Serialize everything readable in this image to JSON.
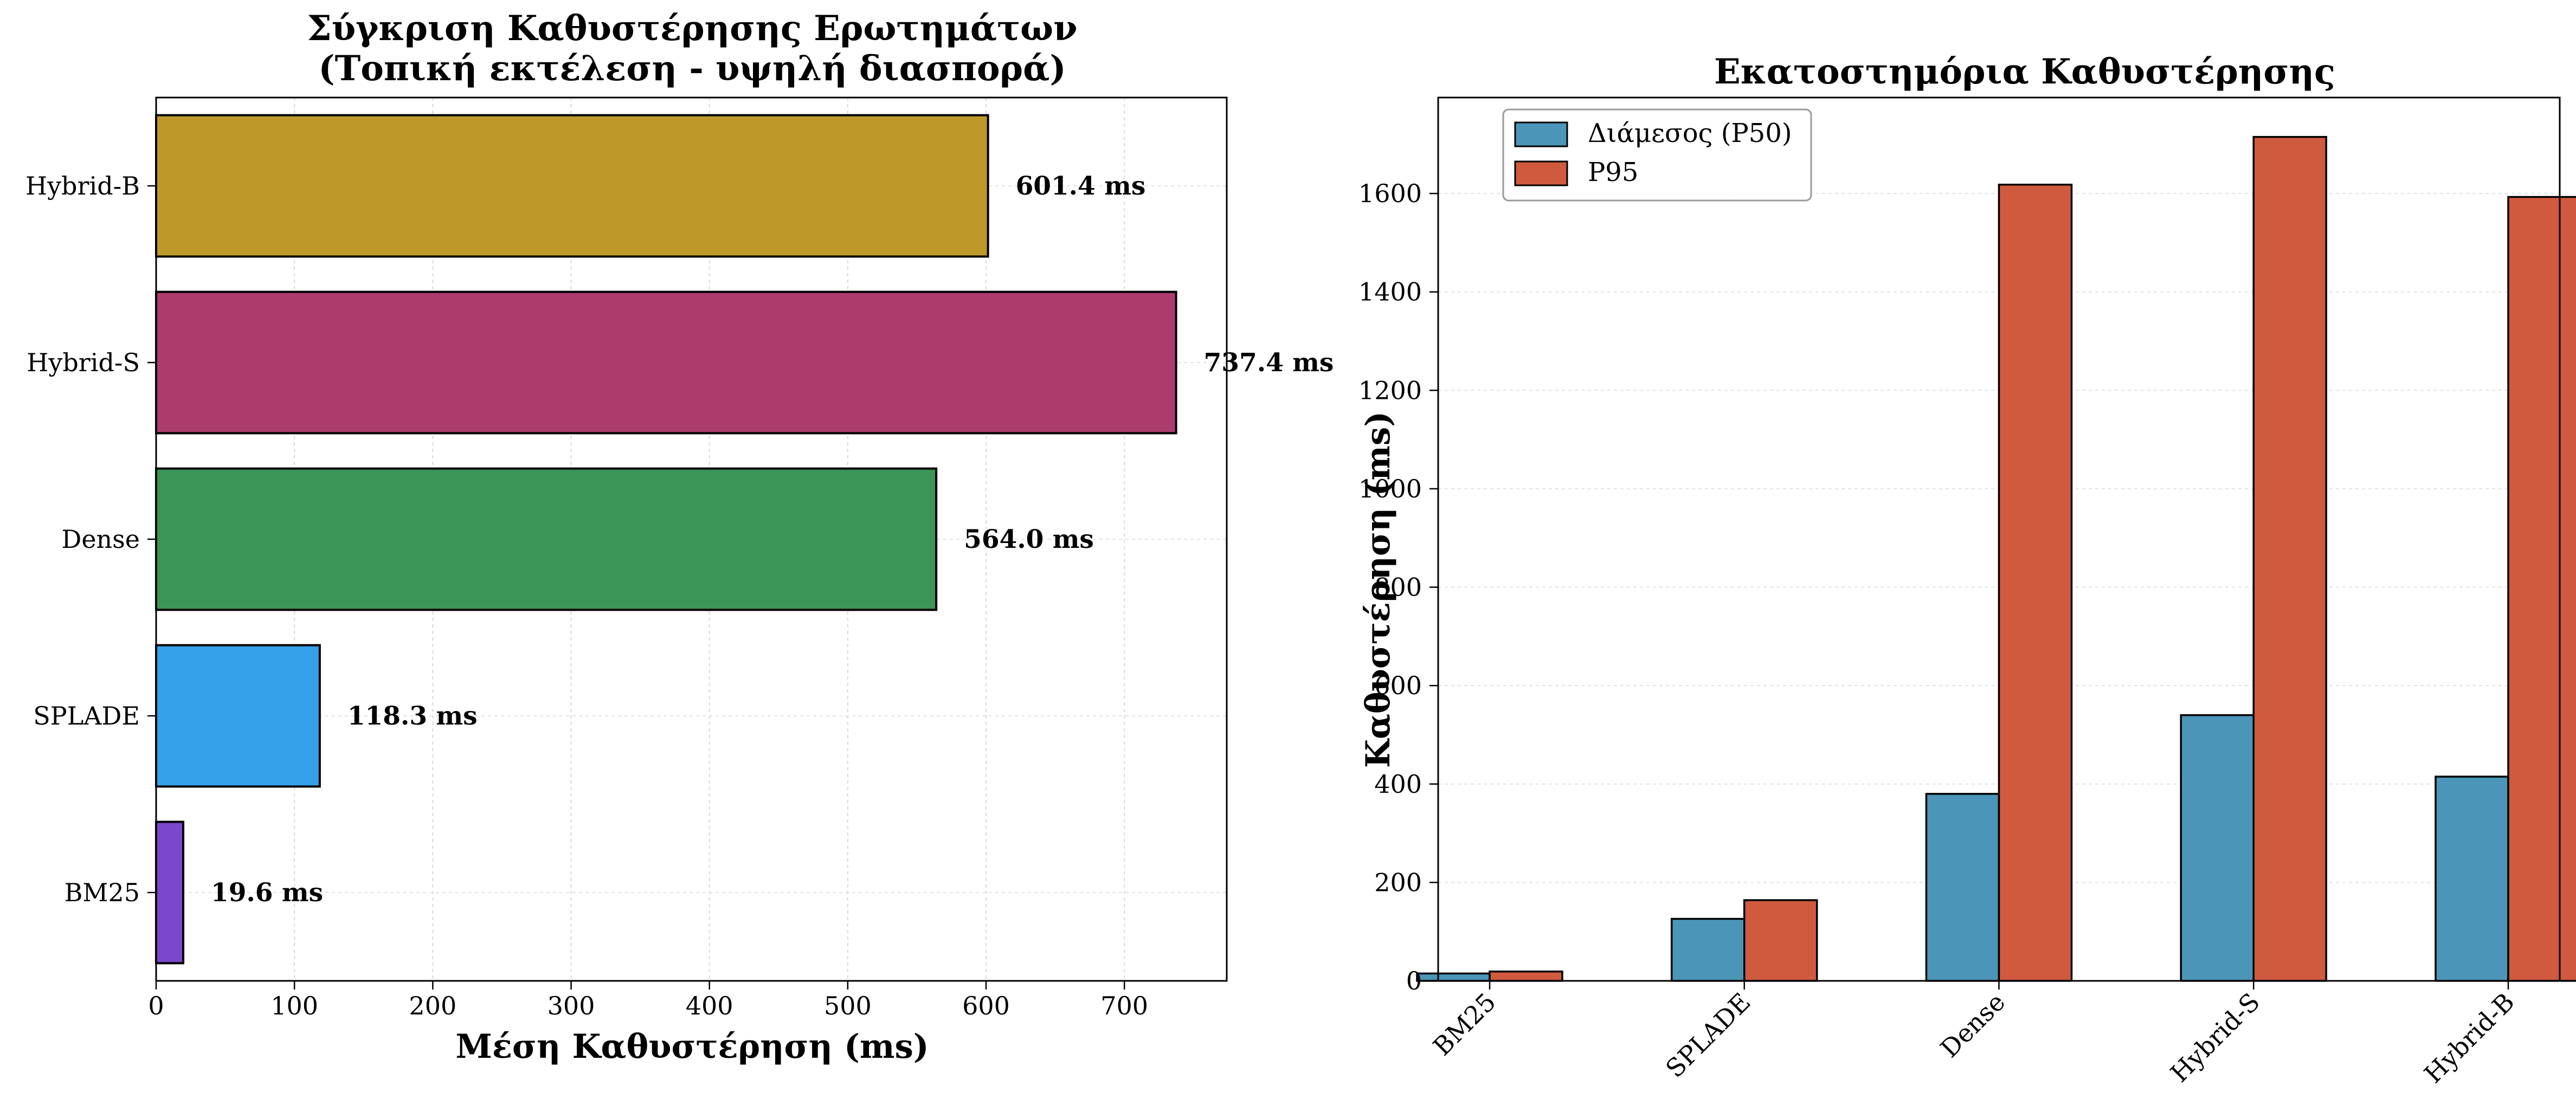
{
  "chart_data": [
    {
      "type": "bar",
      "orientation": "horizontal",
      "title_lines": [
        "Σύγκριση Καθυστέρησης Ερωτημάτων",
        "(Τοπική εκτέλεση - υψηλή διασπορά)"
      ],
      "xlabel": "Μέση Καθυστέρηση (ms)",
      "ylabel": "",
      "categories": [
        "BM25",
        "SPLADE",
        "Dense",
        "Hybrid-S",
        "Hybrid-B"
      ],
      "values": [
        19.6,
        118.3,
        564.0,
        737.4,
        601.4
      ],
      "data_labels": [
        "19.6 ms",
        "118.3 ms",
        "564.0 ms",
        "737.4 ms",
        "601.4 ms"
      ],
      "colors": [
        "#7b48cc",
        "#35a1ea",
        "#3b9556",
        "#ac3c6c",
        "#bd9929"
      ],
      "xlim": [
        0,
        774
      ],
      "xticks": [
        0,
        100,
        200,
        300,
        400,
        500,
        600,
        700
      ],
      "grid": true
    },
    {
      "type": "bar",
      "orientation": "vertical",
      "title": "Εκατοστημόρια Καθυστέρησης",
      "xlabel": "",
      "ylabel": "Καθυστέρηση (ms)",
      "categories": [
        "BM25",
        "SPLADE",
        "Dense",
        "Hybrid-S",
        "Hybrid-B"
      ],
      "series": [
        {
          "name": "Διάμεσος (P50)",
          "color": "#4b96b8",
          "values": [
            15,
            126,
            380,
            540,
            415
          ]
        },
        {
          "name": "P95",
          "color": "#cf5a3d",
          "values": [
            19,
            164,
            1618,
            1715,
            1593
          ]
        }
      ],
      "ylim": [
        0,
        1795
      ],
      "yticks": [
        0,
        200,
        400,
        600,
        800,
        1000,
        1200,
        1400,
        1600
      ],
      "legend": "top-left",
      "grid": true
    }
  ]
}
